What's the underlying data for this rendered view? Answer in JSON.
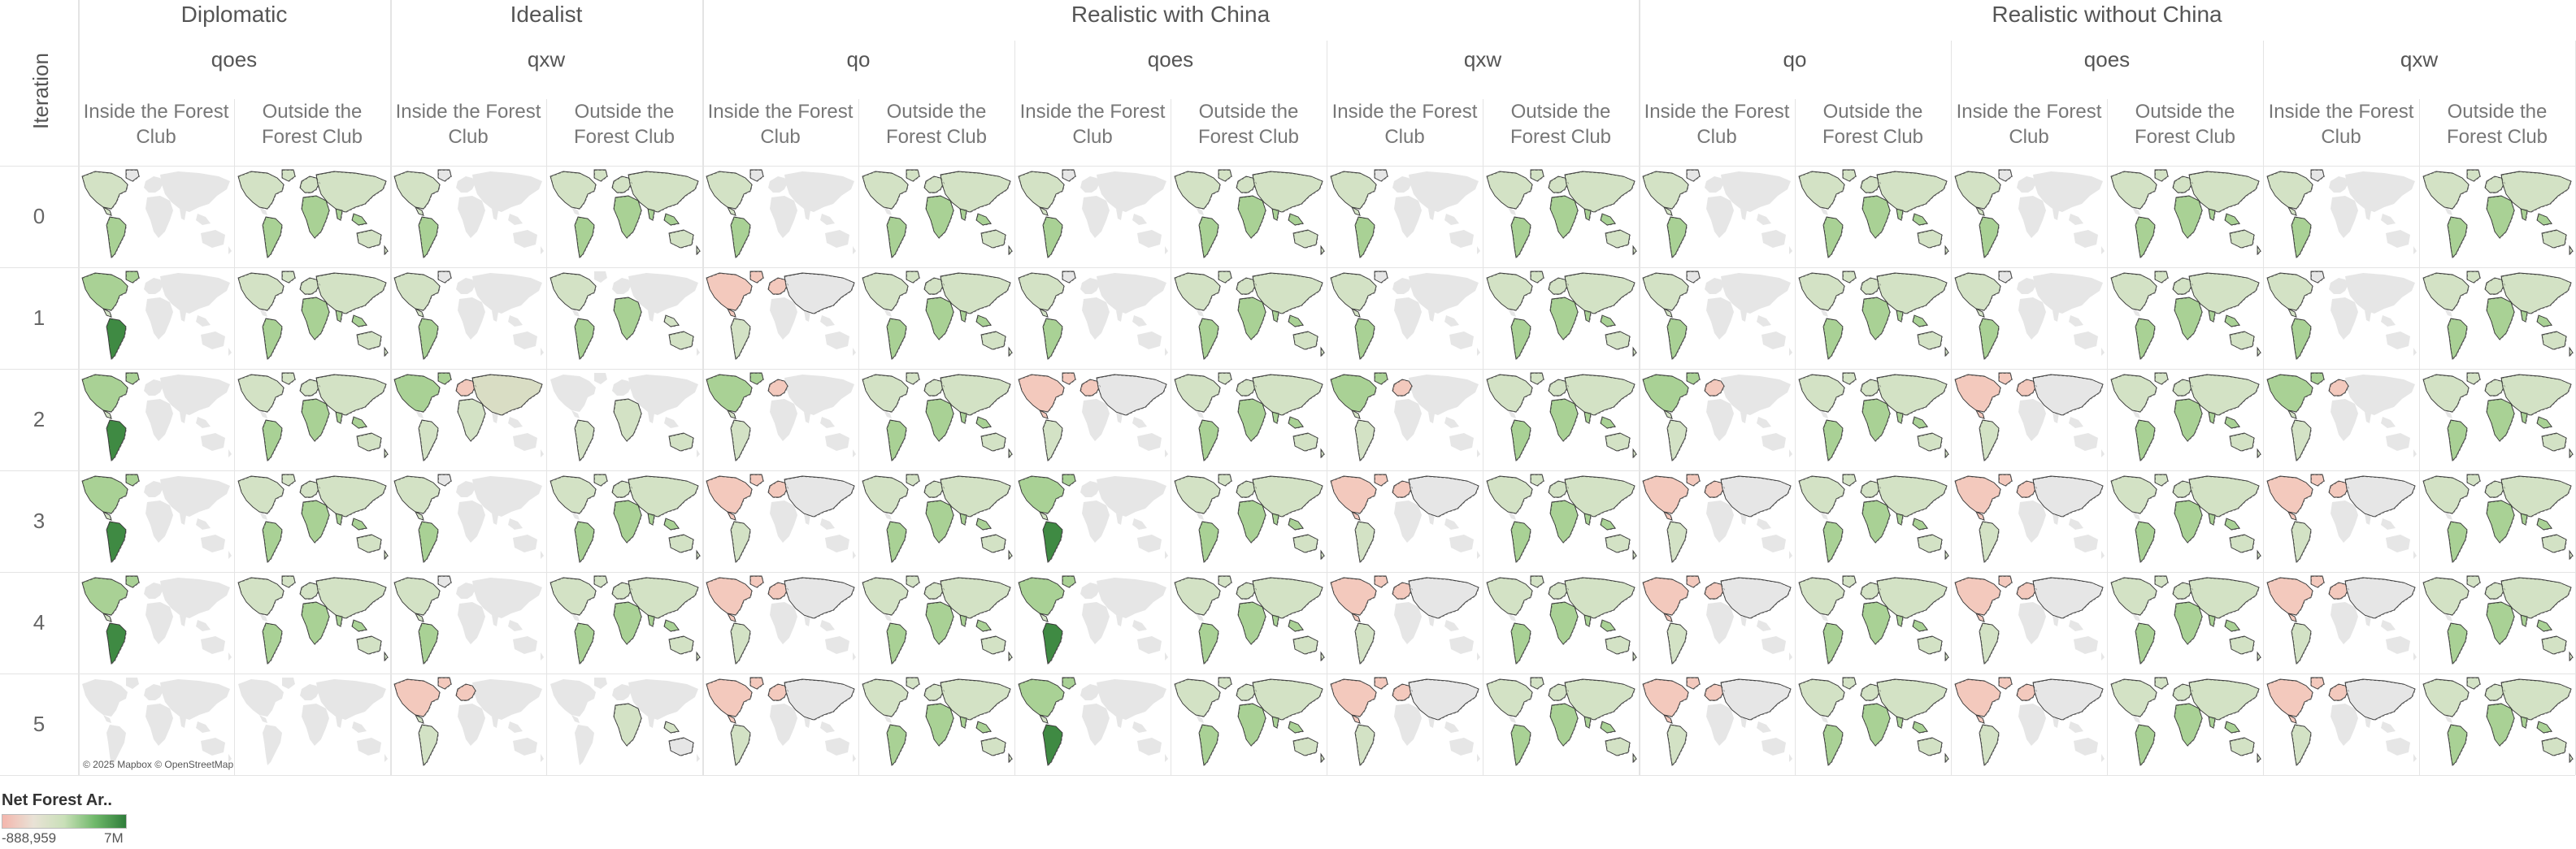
{
  "row_axis_title": "Iteration",
  "scenarios": [
    {
      "label": "Diplomatic",
      "subgroups": [
        "qoes"
      ]
    },
    {
      "label": "Idealist",
      "subgroups": [
        "qxw"
      ]
    },
    {
      "label": "Realistic with China",
      "subgroups": [
        "qo",
        "qoes",
        "qxw"
      ]
    },
    {
      "label": "Realistic without China",
      "subgroups": [
        "qo",
        "qoes",
        "qxw"
      ]
    }
  ],
  "club_columns": [
    "Inside the Forest Club",
    "Outside the Forest Club"
  ],
  "iterations": [
    "0",
    "1",
    "2",
    "3",
    "4",
    "5"
  ],
  "attribution": "© 2025 Mapbox © OpenStreetMap",
  "legend": {
    "title": "Net Forest Ar..",
    "min_label": "-888,959",
    "max_label": "7M",
    "colors": [
      "#f4b6ad",
      "#e9e2d6",
      "#c9e0b8",
      "#6fb86a",
      "#2f7d3a"
    ]
  },
  "colors": {
    "land_inactive": "#e6e6e6",
    "land_light_green": "#d3e2c5",
    "land_mid_green": "#a9d195",
    "land_dark_green": "#3f8a43",
    "land_pink": "#f3c9bd",
    "border": "#3a3a3a",
    "grid": "#e4e4e4"
  },
  "cell_patterns": [
    [
      "in_base",
      "out_base",
      "in_base",
      "out_base",
      "in_base",
      "out_base",
      "in_base",
      "out_base",
      "in_base",
      "out_base",
      "in_base",
      "out_base",
      "in_base",
      "out_base",
      "in_base",
      "out_base"
    ],
    [
      "in_green_brazil",
      "out_base",
      "in_base",
      "out_africa_only",
      "in_pink_europe",
      "out_base",
      "in_base",
      "out_base",
      "in_base",
      "out_base",
      "in_base",
      "out_base",
      "in_base",
      "out_base",
      "in_base",
      "out_base"
    ],
    [
      "in_green_brazil",
      "out_base",
      "in_mixed_eurasia",
      "out_empty",
      "in_green_pink",
      "out_base",
      "in_pink_europe",
      "out_base",
      "in_green_pink",
      "out_base",
      "in_green_pink",
      "out_base",
      "in_pink_europe",
      "out_base",
      "in_green_pink",
      "out_base"
    ],
    [
      "in_green_brazil",
      "out_base",
      "in_base",
      "out_base",
      "in_pink_europe",
      "out_base",
      "in_green_brazil",
      "out_base",
      "in_pink_europe",
      "out_base",
      "in_pink_europe",
      "out_base",
      "in_pink_europe",
      "out_base",
      "in_pink_europe",
      "out_base"
    ],
    [
      "in_green_brazil",
      "out_base",
      "in_base",
      "out_base",
      "in_pink_europe",
      "out_base",
      "in_green_brazil",
      "out_base",
      "in_pink_europe",
      "out_base",
      "in_pink_europe",
      "out_base",
      "in_pink_europe",
      "out_base",
      "in_pink_europe",
      "out_base"
    ],
    [
      "empty",
      "empty",
      "in_pink_base",
      "out_light_dots",
      "in_pink_europe",
      "out_base",
      "in_green_brazil",
      "out_base",
      "in_pink_europe",
      "out_base",
      "in_pink_europe",
      "out_base",
      "in_pink_europe",
      "out_base",
      "in_pink_europe",
      "out_base"
    ]
  ]
}
